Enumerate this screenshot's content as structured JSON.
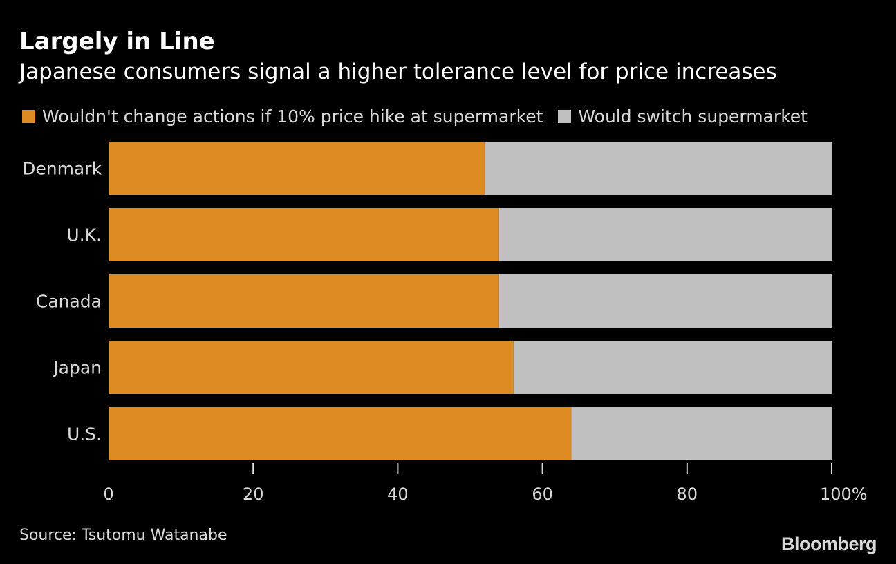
{
  "header": {
    "title": "Largely in Line",
    "subtitle": "Japanese consumers signal a higher tolerance level for price increases"
  },
  "colors": {
    "background": "#000000",
    "orange": "#df8b23",
    "gray": "#c0c0c0",
    "text": "#d9d9d9"
  },
  "chart_data": {
    "type": "bar",
    "orientation": "horizontal",
    "stacked": true,
    "title": "Largely in Line",
    "subtitle": "Japanese consumers signal a higher tolerance level for price increases",
    "categories": [
      "Denmark",
      "U.K.",
      "Canada",
      "Japan",
      "U.S."
    ],
    "series": [
      {
        "name": "Wouldn't change actions if 10% price hike at supermarket",
        "color": "#df8b23",
        "values": [
          52,
          54,
          54,
          56,
          64
        ]
      },
      {
        "name": "Would switch supermarket",
        "color": "#c0c0c0",
        "values": [
          48,
          46,
          46,
          44,
          36
        ]
      }
    ],
    "xlim": [
      0,
      100
    ],
    "xticks": [
      "0",
      "20",
      "40",
      "60",
      "80",
      "100%"
    ],
    "xtick_values": [
      0,
      20,
      40,
      60,
      80,
      100
    ],
    "xlabel": "",
    "ylabel": "",
    "legend_position": "top-left",
    "grid": false
  },
  "footer": {
    "source": "Source: Tsutomu Watanabe",
    "brand": "Bloomberg"
  }
}
